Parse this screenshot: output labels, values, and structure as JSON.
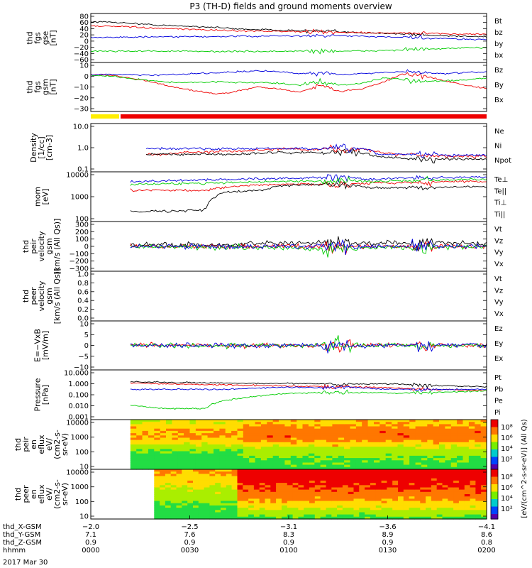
{
  "title": "P3 (TH-D) fields and ground moments overview",
  "date": "2017 Mar 30",
  "colors": {
    "black": "#000000",
    "red": "#ee0000",
    "green": "#00cc00",
    "blue": "#0000dd",
    "yellow": "#ffee00",
    "panel_bar": "#ee0000"
  },
  "chart_data": [
    {
      "type": "line",
      "ylabel": [
        "thd",
        "fgs",
        "gse",
        "[nT]"
      ],
      "y_ticks": [
        "80",
        "60",
        "40",
        "20",
        "0",
        "−20",
        "−40",
        "−60"
      ],
      "ylim": [
        -60,
        85
      ],
      "series": [
        {
          "name": "Bt",
          "color": "black",
          "baseline": [
            65,
            64,
            60,
            55,
            52,
            50,
            47,
            42,
            40,
            38,
            36,
            34,
            32,
            30,
            28,
            25,
            22,
            20,
            18,
            17
          ]
        },
        {
          "name": "bz",
          "color": "red",
          "baseline": [
            52,
            50,
            48,
            44,
            42,
            40,
            38,
            36,
            35,
            34,
            33,
            32,
            31,
            30,
            29,
            28,
            27,
            26,
            25,
            25
          ]
        },
        {
          "name": "by",
          "color": "green",
          "baseline": [
            -30,
            -30,
            -30,
            -30,
            -30,
            -31,
            -31,
            -31,
            -31,
            -31,
            -30,
            -30,
            -30,
            -30,
            -28,
            -26,
            -24,
            -22,
            -20,
            -18
          ]
        },
        {
          "name": "bx",
          "color": "blue",
          "baseline": [
            15,
            15,
            15,
            16,
            16,
            17,
            17,
            18,
            18,
            19,
            19,
            20,
            20,
            18,
            16,
            14,
            12,
            10,
            9,
            8
          ]
        }
      ]
    },
    {
      "type": "line",
      "ylabel": [
        "thd",
        "fgs",
        "gsm",
        "[nT]"
      ],
      "y_ticks": [
        "10",
        "0",
        "−10",
        "−20",
        "−30"
      ],
      "ylim": [
        -35,
        15
      ],
      "series": [
        {
          "name": "Bz",
          "color": "red",
          "baseline": [
            4,
            3,
            0,
            -5,
            -10,
            -14,
            -18,
            -15,
            -10,
            -12,
            -16,
            -8,
            -15,
            -12,
            -5,
            5,
            2,
            -3,
            -8,
            -12
          ]
        },
        {
          "name": "By",
          "color": "green",
          "baseline": [
            3,
            2,
            -1,
            -3,
            -5,
            -5,
            -4,
            -5,
            -5,
            -6,
            -8,
            -4,
            -8,
            -6,
            0,
            -2,
            -4,
            -3,
            -2,
            0
          ]
        },
        {
          "name": "Bx",
          "color": "blue",
          "baseline": [
            4,
            4,
            4,
            3,
            4,
            5,
            6,
            7,
            8,
            7,
            5,
            6,
            4,
            5,
            6,
            7,
            6,
            5,
            6,
            7
          ]
        }
      ]
    },
    {
      "type": "line",
      "ylabel": [
        "Density",
        "[1/cc]",
        "[cm-3]"
      ],
      "y_ticks": [
        "10.0",
        "1.0",
        "0.1"
      ],
      "scale": "log",
      "ylim": [
        0.1,
        10
      ],
      "start": 0.14,
      "series": [
        {
          "name": "Ne",
          "color": "red",
          "baseline": [
            0.5,
            0.5,
            0.6,
            0.6,
            0.7,
            0.7,
            0.8,
            0.8,
            0.9,
            0.8,
            0.9,
            0.8,
            0.9,
            0.6,
            0.5,
            0.5,
            0.4,
            0.4,
            0.4,
            0.4
          ]
        },
        {
          "name": "Ni",
          "color": "black",
          "baseline": [
            0.5,
            0.5,
            0.5,
            0.5,
            0.5,
            0.5,
            0.55,
            0.6,
            0.6,
            0.6,
            0.6,
            0.6,
            0.6,
            0.4,
            0.35,
            0.3,
            0.3,
            0.3,
            0.3,
            0.3
          ]
        },
        {
          "name": "Npot",
          "color": "blue",
          "baseline": [
            0.9,
            0.9,
            0.9,
            0.9,
            0.9,
            0.9,
            0.9,
            0.9,
            0.9,
            0.9,
            0.9,
            0.9,
            0.9,
            0.5,
            0.5,
            0.5,
            0.5,
            0.45,
            0.45,
            0.45
          ]
        }
      ]
    },
    {
      "type": "line",
      "ylabel": [
        "mom",
        "[eV]"
      ],
      "y_ticks": [
        "10000",
        "1000",
        "100"
      ],
      "scale": "log",
      "ylim": [
        50,
        10000
      ],
      "start": 0.1,
      "series": [
        {
          "name": "Te⊥",
          "color": "red",
          "baseline": [
            1500,
            1500,
            1500,
            1500,
            1500,
            2000,
            2500,
            2800,
            3000,
            3000,
            3000,
            3000,
            3200,
            3500,
            3600,
            3800,
            3900,
            4000,
            4200,
            4200
          ]
        },
        {
          "name": "Te||",
          "color": "black",
          "baseline": [
            130,
            130,
            130,
            140,
            150,
            1200,
            1300,
            1500,
            2500,
            2800,
            3000,
            3000,
            2600,
            2000,
            2000,
            2000,
            2000,
            2100,
            2200,
            2200
          ]
        },
        {
          "name": "Ti⊥",
          "color": "blue",
          "baseline": [
            4000,
            4200,
            4500,
            4800,
            5000,
            5200,
            5500,
            5800,
            6000,
            6200,
            6200,
            6300,
            6400,
            5000,
            6000,
            6200,
            6400,
            6600,
            6800,
            7000
          ]
        },
        {
          "name": "Ti||",
          "color": "green",
          "baseline": [
            3000,
            3100,
            3200,
            3300,
            3400,
            3600,
            3800,
            4000,
            4200,
            4300,
            4400,
            4500,
            4600,
            4000,
            4500,
            4600,
            4800,
            5000,
            5200,
            5400
          ]
        }
      ]
    },
    {
      "type": "line",
      "ylabel": [
        "thd",
        "peir",
        "velocity",
        "gsm",
        "[km/s (All Qs)]"
      ],
      "y_ticks": [
        "300",
        "200",
        "100",
        "0",
        "−100",
        "−200",
        "−300"
      ],
      "ylim": [
        -300,
        300
      ],
      "start": 0.1,
      "series": [
        {
          "name": "Vt",
          "color": "black",
          "baseline": [
            20,
            20,
            20,
            20,
            20,
            20,
            30,
            30,
            40,
            40,
            40,
            40,
            40,
            40,
            40,
            40,
            40,
            40,
            40,
            40
          ]
        },
        {
          "name": "Vz",
          "color": "red",
          "baseline": [
            0,
            0,
            0,
            0,
            0,
            0,
            0,
            0,
            0,
            0,
            0,
            0,
            0,
            0,
            0,
            0,
            0,
            0,
            0,
            0
          ]
        },
        {
          "name": "Vy",
          "color": "green",
          "baseline": [
            -10,
            -10,
            -10,
            -10,
            -10,
            -10,
            -10,
            -20,
            -20,
            -20,
            -30,
            -20,
            -20,
            -20,
            -10,
            -10,
            -10,
            -10,
            -10,
            -10
          ]
        },
        {
          "name": "Vx",
          "color": "blue",
          "baseline": [
            0,
            0,
            0,
            0,
            0,
            0,
            0,
            0,
            0,
            0,
            0,
            0,
            0,
            0,
            0,
            0,
            0,
            0,
            0,
            0
          ]
        }
      ]
    },
    {
      "type": "line",
      "ylabel": [
        "thd",
        "peer",
        "velocity",
        "gsm",
        "[km/s (All Qs)]"
      ],
      "y_ticks": [
        "1.0",
        "0.8",
        "0.6",
        "0.4",
        "0.2",
        "0.0"
      ],
      "ylim": [
        0,
        1
      ],
      "empty": true,
      "series": [
        {
          "name": "Vt",
          "color": "black"
        },
        {
          "name": "Vz",
          "color": "red"
        },
        {
          "name": "Vy",
          "color": "green"
        },
        {
          "name": "Vx",
          "color": "blue"
        }
      ]
    },
    {
      "type": "line",
      "ylabel": [
        "E=−VxB",
        "[mV/m]"
      ],
      "y_ticks": [
        "10",
        "5",
        "0",
        "−5",
        "−10"
      ],
      "ylim": [
        -10,
        10
      ],
      "start": 0.1,
      "series": [
        {
          "name": "Ez",
          "color": "red",
          "baseline": [
            0,
            0,
            0,
            0,
            0,
            0,
            0,
            0,
            0,
            0,
            0,
            0,
            0,
            0,
            0,
            0,
            0,
            0,
            0,
            0
          ]
        },
        {
          "name": "Ey",
          "color": "green",
          "baseline": [
            0,
            0,
            0,
            0,
            0,
            0,
            0,
            0,
            0,
            0,
            0,
            0,
            0,
            0,
            0,
            0,
            0,
            0,
            0,
            0
          ]
        },
        {
          "name": "Ex",
          "color": "blue",
          "baseline": [
            0,
            0,
            0,
            0,
            0,
            0,
            0,
            0,
            0,
            0,
            0,
            0,
            0,
            0,
            0,
            0,
            0,
            0,
            0,
            0
          ]
        }
      ]
    },
    {
      "type": "line",
      "ylabel": [
        "Pressure",
        "[nPa]"
      ],
      "y_ticks": [
        "10.000",
        "1.000",
        "0.100",
        "0.010",
        "0.001"
      ],
      "scale": "log",
      "ylim": [
        0.001,
        10
      ],
      "start": 0.1,
      "series": [
        {
          "name": "Pt",
          "color": "black",
          "baseline": [
            1.4,
            1.3,
            1.2,
            1.2,
            1.1,
            1.1,
            1.0,
            1.0,
            1.0,
            1.0,
            0.95,
            0.9,
            0.9,
            0.9,
            0.9,
            0.8,
            0.7,
            0.6,
            0.55,
            0.5
          ]
        },
        {
          "name": "Pb",
          "color": "red",
          "baseline": [
            1.1,
            1.0,
            0.9,
            0.85,
            0.8,
            0.75,
            0.7,
            0.65,
            0.6,
            0.55,
            0.55,
            0.5,
            0.5,
            0.45,
            0.4,
            0.35,
            0.3,
            0.28,
            0.25,
            0.22
          ]
        },
        {
          "name": "Pe",
          "color": "green",
          "baseline": [
            0.012,
            0.008,
            0.006,
            0.006,
            0.006,
            0.03,
            0.05,
            0.08,
            0.12,
            0.14,
            0.15,
            0.15,
            0.15,
            0.15,
            0.14,
            0.15,
            0.16,
            0.18,
            0.2,
            0.22
          ]
        },
        {
          "name": "Pi",
          "color": "blue",
          "baseline": [
            0.3,
            0.3,
            0.3,
            0.3,
            0.3,
            0.3,
            0.35,
            0.4,
            0.45,
            0.45,
            0.45,
            0.45,
            0.45,
            0.35,
            0.3,
            0.3,
            0.3,
            0.3,
            0.3,
            0.3
          ]
        }
      ]
    },
    {
      "type": "heatmap",
      "ylabel": [
        "thd",
        "peir",
        "en",
        "eflux",
        "eV/",
        "(cm2-s-",
        "sr-eV)"
      ],
      "y_ticks": [
        "10000",
        "1000",
        "100",
        "10"
      ],
      "start": 0.1
    },
    {
      "type": "heatmap",
      "ylabel": [
        "thd",
        "peer",
        "en",
        "eflux",
        "eV/",
        "(cm2-s-",
        "sr-eV)"
      ],
      "y_ticks": [
        "10000",
        "1000",
        "100",
        "10"
      ],
      "start": 0.16
    }
  ],
  "colorbar": {
    "ticks": [
      "10⁸",
      "10⁶",
      "10⁴",
      "10²"
    ],
    "label": "[eV/(cm^2-s-sr-eV)]",
    "label2": "(All Qs)"
  },
  "x_axis": {
    "rows": [
      {
        "label": "thd_X-GSM",
        "values": [
          "−2.0",
          "−2.5",
          "−3.1",
          "−3.6",
          "−4.1"
        ]
      },
      {
        "label": "thd_Y-GSM",
        "values": [
          "7.1",
          "7.6",
          "8.3",
          "8.9",
          "8.6"
        ]
      },
      {
        "label": "thd_Z-GSM",
        "values": [
          "0.9",
          "0.9",
          "0.9",
          "0.9",
          "0.8"
        ]
      },
      {
        "label": "hhmm",
        "values": [
          "0000",
          "0030",
          "0100",
          "0130",
          "0200"
        ]
      }
    ]
  }
}
